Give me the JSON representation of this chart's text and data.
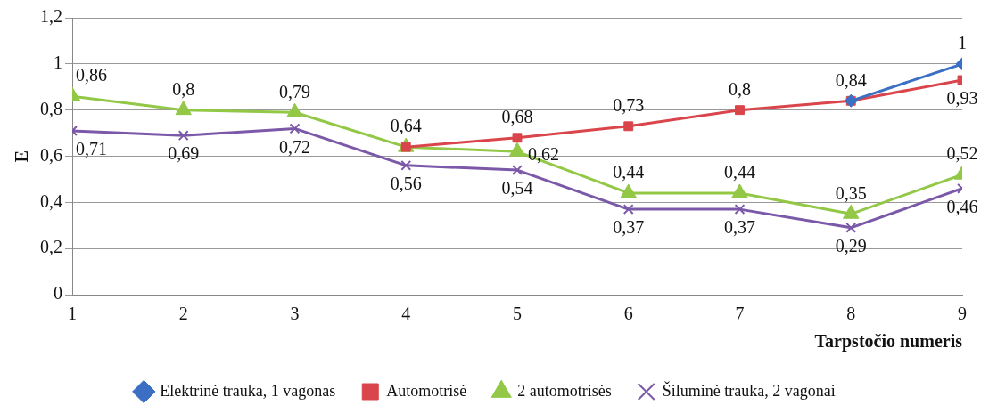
{
  "chart_data": {
    "type": "line",
    "xlabel": "Tarpstočio numeris",
    "ylabel": "E",
    "x": [
      1,
      2,
      3,
      4,
      5,
      6,
      7,
      8,
      9
    ],
    "xlim": [
      1,
      9
    ],
    "xticks": [
      1,
      2,
      3,
      4,
      5,
      6,
      7,
      8,
      9
    ],
    "ylim": [
      0,
      1.2
    ],
    "yticks": [
      {
        "value": 0,
        "label": "0"
      },
      {
        "value": 0.2,
        "label": "0,2"
      },
      {
        "value": 0.4,
        "label": "0,4"
      },
      {
        "value": 0.6,
        "label": "0,6"
      },
      {
        "value": 0.8,
        "label": "0,8"
      },
      {
        "value": 1,
        "label": "1"
      },
      {
        "value": 1.2,
        "label": "1,2"
      }
    ],
    "grid": "y",
    "legend": "bottom",
    "series": [
      {
        "name": "Elektrinė trauka, 1 vagonas",
        "color": "#3b6fc4",
        "marker": "diamond",
        "values": [
          null,
          null,
          null,
          null,
          null,
          null,
          null,
          0.84,
          1
        ],
        "value_labels": [
          null,
          null,
          null,
          null,
          null,
          null,
          null,
          null,
          "1"
        ]
      },
      {
        "name": "Automotrisė",
        "color": "#d9454a",
        "marker": "square",
        "values": [
          null,
          null,
          null,
          0.64,
          0.68,
          0.73,
          0.8,
          0.84,
          0.93
        ],
        "value_labels": [
          null,
          null,
          null,
          "0,64",
          "0,68",
          "0,73",
          "0,8",
          "0,84",
          "0,93"
        ]
      },
      {
        "name": "2 automotrisės",
        "color": "#92c846",
        "marker": "triangle",
        "values": [
          0.86,
          0.8,
          0.79,
          0.64,
          0.62,
          0.44,
          0.44,
          0.35,
          0.52
        ],
        "value_labels": [
          "0,86",
          "0,8",
          "0,79",
          null,
          "0,62",
          "0,44",
          "0,44",
          "0,35",
          "0,52"
        ]
      },
      {
        "name": "Šiluminė trauka, 2 vagonai",
        "color": "#7b59a8",
        "marker": "cross",
        "values": [
          0.71,
          0.69,
          0.72,
          0.56,
          0.54,
          0.37,
          0.37,
          0.29,
          0.46
        ],
        "value_labels": [
          "0,71",
          "0,69",
          "0,72",
          "0,56",
          "0,54",
          "0,37",
          "0,37",
          "0,29",
          "0,46"
        ]
      }
    ]
  }
}
